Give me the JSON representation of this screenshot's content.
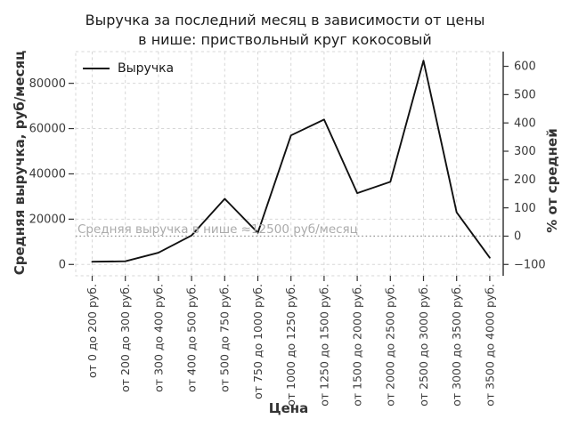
{
  "chart_data": {
    "type": "line",
    "title": "Выручка за последний месяц в зависимости от цены в нише: приствольный круг кокосовый",
    "title_line1": "Выручка за последний месяц в зависимости от цены",
    "title_line2": "в нише: приствольный круг кокосовый",
    "xlabel": "Цена",
    "ylabel_left": "Средняя выручка, руб/месяц",
    "ylabel_right": "% от средней",
    "grid": true,
    "legend_position": "upper left",
    "categories": [
      "от 0 до 200 руб.",
      "от 200 до 300 руб.",
      "от 300 до 400 руб.",
      "от 400 до 500 руб.",
      "от 500 до 750 руб.",
      "от 750 до 1000 руб.",
      "от 1000 до 1250 руб.",
      "от 1250 до 1500 руб.",
      "от 1500 до 2000 руб.",
      "от 2000 до 2500 руб.",
      "от 2500 до 3000 руб.",
      "от 3000 до 3500 руб.",
      "от 3500 до 4000 руб."
    ],
    "series": [
      {
        "name": "Выручка",
        "values": [
          1200,
          1400,
          5200,
          12800,
          29000,
          14000,
          57000,
          64000,
          31500,
          36500,
          90000,
          23000,
          3000
        ]
      }
    ],
    "yticks_left": [
      0,
      20000,
      40000,
      60000,
      80000
    ],
    "yticks_right": [
      -100,
      0,
      100,
      200,
      300,
      400,
      500,
      600
    ],
    "ylim_left": [
      -5000,
      94000
    ],
    "reference_line": {
      "value": 12500,
      "style": "dotted",
      "label": "Средняя выручка в нише ≈12500 руб/месяц"
    }
  },
  "colors": {
    "line": "#111111",
    "grid": "#d7d7d7",
    "border": "#d7d7d7",
    "tick": "#333333",
    "tick_text": "#3b3b3b",
    "reference_line": "#999999",
    "annotation_text": "#ababab",
    "right_spine": "#1a1a1a",
    "background": "#ffffff"
  }
}
